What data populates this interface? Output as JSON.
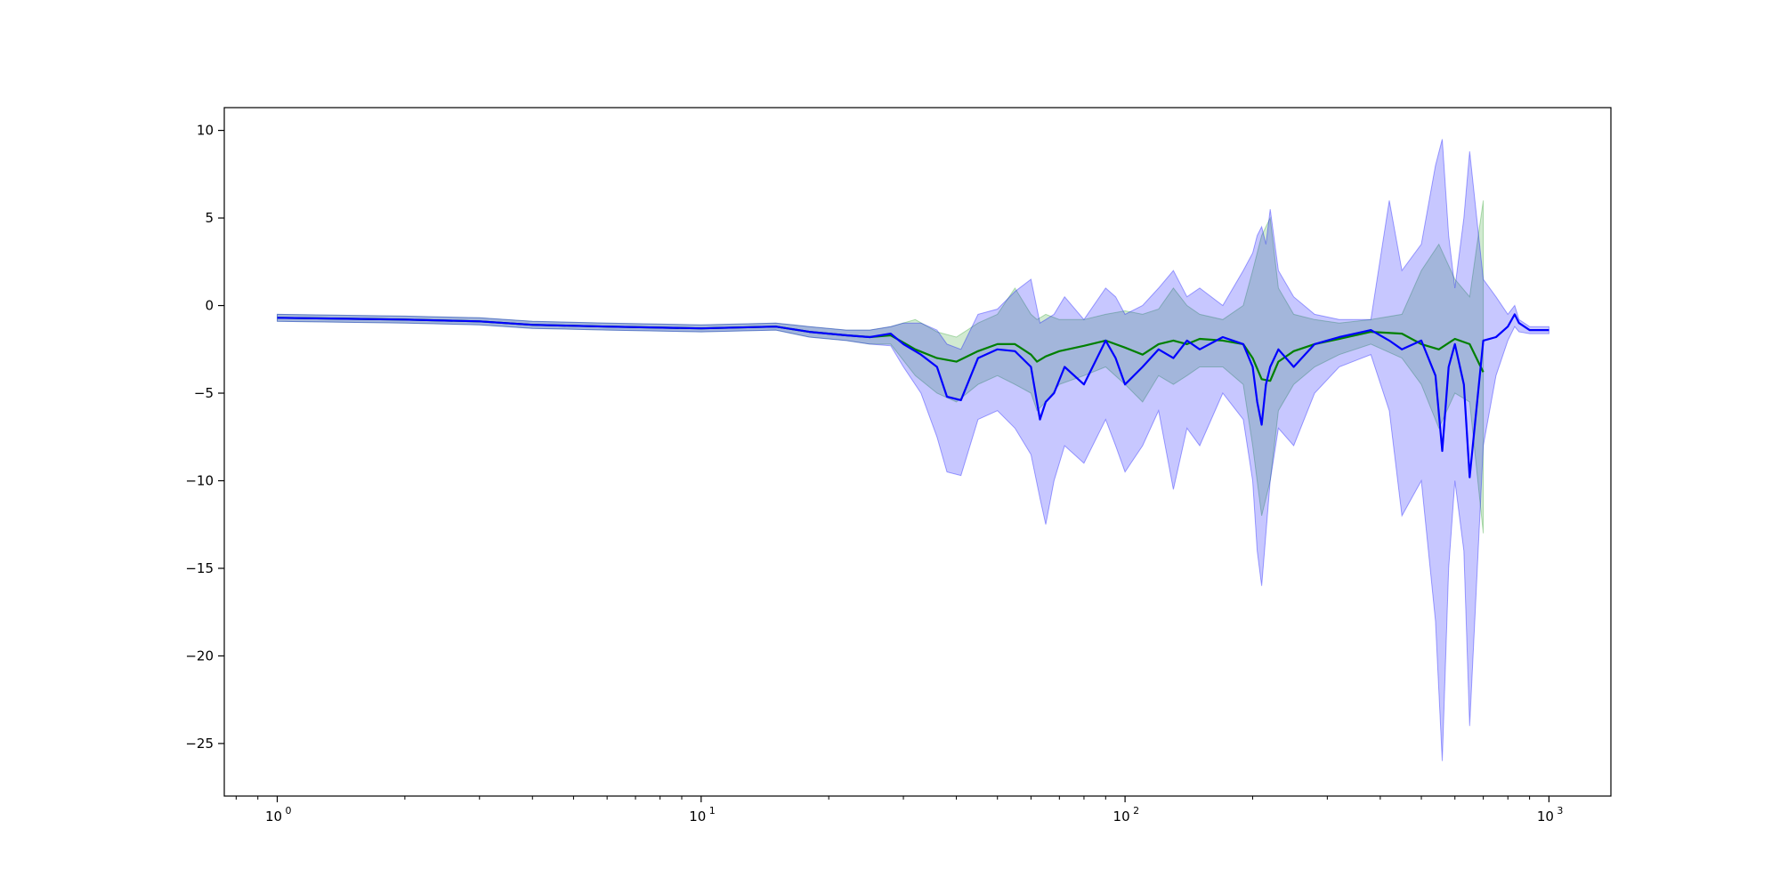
{
  "chart_data": {
    "type": "line",
    "title": "",
    "xlabel": "",
    "ylabel": "",
    "x_scale": "log",
    "xlim": [
      0.75,
      1400
    ],
    "ylim": [
      -28,
      11.3
    ],
    "grid": false,
    "legend": "none",
    "x_ticks": [
      {
        "value": 1,
        "base": "10",
        "exp": "0"
      },
      {
        "value": 10,
        "base": "10",
        "exp": "1"
      },
      {
        "value": 100,
        "base": "10",
        "exp": "2"
      },
      {
        "value": 1000,
        "base": "10",
        "exp": "3"
      }
    ],
    "y_ticks": [
      {
        "value": 10,
        "label": "10"
      },
      {
        "value": 5,
        "label": "5"
      },
      {
        "value": 0,
        "label": "0"
      },
      {
        "value": -5,
        "label": "−5"
      },
      {
        "value": -10,
        "label": "−10"
      },
      {
        "value": -15,
        "label": "−15"
      },
      {
        "value": -20,
        "label": "−20"
      },
      {
        "value": -25,
        "label": "−25"
      }
    ],
    "series": [
      {
        "color": "#008000",
        "band_color": "#2ca02c",
        "x": [
          1,
          2,
          3,
          4,
          6,
          10,
          15,
          18,
          22,
          25,
          28,
          32,
          36,
          40,
          45,
          50,
          55,
          60,
          62,
          65,
          70,
          80,
          90,
          100,
          110,
          120,
          130,
          140,
          150,
          170,
          190,
          200,
          210,
          220,
          230,
          250,
          280,
          320,
          380,
          450,
          500,
          550,
          600,
          650,
          700
        ],
        "y": [
          -0.7,
          -0.8,
          -0.9,
          -1.1,
          -1.2,
          -1.3,
          -1.2,
          -1.5,
          -1.7,
          -1.8,
          -1.7,
          -2.5,
          -3.0,
          -3.2,
          -2.6,
          -2.2,
          -2.2,
          -2.8,
          -3.2,
          -2.9,
          -2.6,
          -2.3,
          -2.0,
          -2.4,
          -2.8,
          -2.2,
          -2.0,
          -2.2,
          -1.9,
          -2.0,
          -2.2,
          -3.0,
          -4.2,
          -4.3,
          -3.2,
          -2.6,
          -2.2,
          -1.9,
          -1.5,
          -1.6,
          -2.2,
          -2.5,
          -1.9,
          -2.2,
          -3.8
        ],
        "lower": [
          -0.9,
          -1.0,
          -1.1,
          -1.3,
          -1.4,
          -1.5,
          -1.4,
          -1.8,
          -2.0,
          -2.2,
          -2.2,
          -4.0,
          -5.0,
          -5.5,
          -4.5,
          -4.0,
          -4.5,
          -5.0,
          -6.0,
          -5.5,
          -4.5,
          -4.0,
          -3.5,
          -4.5,
          -5.5,
          -4.0,
          -4.5,
          -4.0,
          -3.5,
          -3.5,
          -4.5,
          -8.0,
          -12.0,
          -10.0,
          -6.0,
          -4.5,
          -3.5,
          -2.8,
          -2.2,
          -3.0,
          -4.5,
          -7.0,
          -5.0,
          -5.5,
          -13.0
        ],
        "upper": [
          -0.5,
          -0.6,
          -0.7,
          -0.9,
          -1.0,
          -1.1,
          -1.0,
          -1.2,
          -1.4,
          -1.4,
          -1.2,
          -0.8,
          -1.5,
          -1.8,
          -1.0,
          -0.5,
          1.0,
          -0.5,
          -0.8,
          -0.5,
          -0.8,
          -0.8,
          -0.5,
          -0.3,
          -0.5,
          -0.2,
          1.0,
          0.0,
          -0.5,
          -0.8,
          0.0,
          2.0,
          4.0,
          5.0,
          1.0,
          -0.5,
          -0.8,
          -1.0,
          -0.8,
          -0.5,
          2.0,
          3.5,
          1.5,
          0.5,
          6.0
        ]
      },
      {
        "color": "#0000ff",
        "band_color": "#0000ff",
        "x": [
          1,
          2,
          3,
          4,
          6,
          10,
          15,
          18,
          22,
          25,
          28,
          30,
          33,
          36,
          38,
          41,
          45,
          50,
          55,
          60,
          63,
          65,
          68,
          72,
          80,
          90,
          95,
          100,
          110,
          120,
          130,
          140,
          150,
          170,
          190,
          200,
          205,
          210,
          215,
          220,
          230,
          250,
          280,
          320,
          380,
          420,
          450,
          500,
          540,
          560,
          580,
          600,
          630,
          650,
          700,
          750,
          800,
          830,
          850,
          900,
          1000
        ],
        "y": [
          -0.7,
          -0.8,
          -0.9,
          -1.1,
          -1.2,
          -1.3,
          -1.2,
          -1.5,
          -1.7,
          -1.8,
          -1.6,
          -2.2,
          -2.8,
          -3.5,
          -5.2,
          -5.4,
          -3.0,
          -2.5,
          -2.6,
          -3.5,
          -6.5,
          -5.5,
          -5.0,
          -3.5,
          -4.5,
          -2.0,
          -3.0,
          -4.5,
          -3.5,
          -2.5,
          -3.0,
          -2.0,
          -2.5,
          -1.8,
          -2.2,
          -3.5,
          -5.5,
          -6.8,
          -4.5,
          -3.5,
          -2.5,
          -3.5,
          -2.2,
          -1.8,
          -1.4,
          -2.0,
          -2.5,
          -2.0,
          -4.0,
          -8.3,
          -3.5,
          -2.2,
          -4.5,
          -9.8,
          -2.0,
          -1.8,
          -1.2,
          -0.5,
          -1.0,
          -1.4,
          -1.4
        ],
        "lower": [
          -0.9,
          -1.0,
          -1.1,
          -1.3,
          -1.4,
          -1.5,
          -1.4,
          -1.8,
          -2.0,
          -2.2,
          -2.3,
          -3.5,
          -5.0,
          -7.5,
          -9.5,
          -9.7,
          -6.5,
          -6.0,
          -7.0,
          -8.5,
          -11.0,
          -12.5,
          -10.0,
          -8.0,
          -9.0,
          -6.5,
          -8.0,
          -9.5,
          -8.0,
          -6.0,
          -10.5,
          -7.0,
          -8.0,
          -5.0,
          -6.5,
          -10.0,
          -14.0,
          -16.0,
          -13.0,
          -10.0,
          -7.0,
          -8.0,
          -5.0,
          -3.5,
          -2.8,
          -6.0,
          -12.0,
          -10.0,
          -18.0,
          -26.0,
          -15.0,
          -10.0,
          -14.0,
          -24.0,
          -8.0,
          -4.0,
          -2.0,
          -1.2,
          -1.5,
          -1.6,
          -1.6
        ],
        "upper": [
          -0.5,
          -0.6,
          -0.7,
          -0.9,
          -1.0,
          -1.1,
          -1.0,
          -1.2,
          -1.4,
          -1.4,
          -1.2,
          -1.0,
          -1.0,
          -1.4,
          -2.2,
          -2.5,
          -0.5,
          -0.2,
          0.8,
          1.5,
          -1.0,
          -0.8,
          -0.5,
          0.5,
          -0.8,
          1.0,
          0.5,
          -0.5,
          0.0,
          1.0,
          2.0,
          0.5,
          1.0,
          0.0,
          2.0,
          3.0,
          4.0,
          4.5,
          3.5,
          5.5,
          2.0,
          0.5,
          -0.5,
          -0.8,
          -0.8,
          6.0,
          2.0,
          3.5,
          8.0,
          9.5,
          4.0,
          1.0,
          5.0,
          8.8,
          1.5,
          0.5,
          -0.5,
          0.0,
          -0.8,
          -1.2,
          -1.2
        ]
      }
    ]
  }
}
